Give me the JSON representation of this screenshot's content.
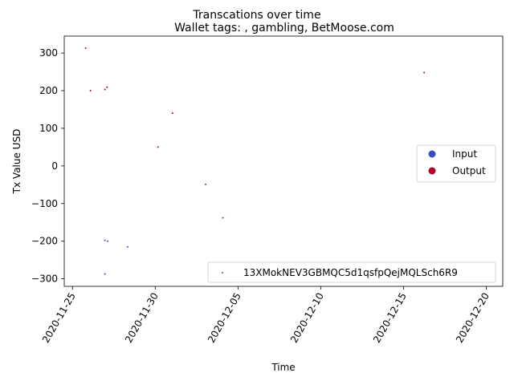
{
  "chart_data": {
    "type": "scatter",
    "title": "Transcations over time",
    "subtitle": "Wallet tags: , gambling, BetMoose.com",
    "xlabel": "Time",
    "ylabel": "Tx Value USD",
    "x_ticks": [
      "2020-11-25",
      "2020-11-30",
      "2020-12-05",
      "2020-12-10",
      "2020-12-15",
      "2020-12-20"
    ],
    "y_ticks": [
      300,
      200,
      100,
      0,
      -100,
      -200,
      -300
    ],
    "xlim": [
      "2020-11-24T12:00",
      "2020-12-21T00:00"
    ],
    "ylim": [
      -320,
      345
    ],
    "grid": false,
    "legend_type": {
      "location": "center-right",
      "entries": [
        {
          "label": "Input",
          "color": "#3b4cc0"
        },
        {
          "label": "Output",
          "color": "#b40426"
        }
      ]
    },
    "legend_address": {
      "location": "lower-right",
      "label": "13XMokNEV3GBMQC5d1qsfpQejMQLSch6R9",
      "color": "#3b4cc0"
    },
    "series": [
      {
        "name": "Output",
        "color": "#b40426",
        "points": [
          {
            "x": "2020-11-25T19:00",
            "y": 313
          },
          {
            "x": "2020-11-26T02:00",
            "y": 200
          },
          {
            "x": "2020-11-26T23:00",
            "y": 203
          },
          {
            "x": "2020-11-27T02:00",
            "y": 209
          },
          {
            "x": "2020-11-30T04:00",
            "y": 50
          },
          {
            "x": "2020-12-01T01:00",
            "y": 140
          },
          {
            "x": "2020-12-16T06:00",
            "y": 248
          }
        ]
      },
      {
        "name": "Input",
        "color": "#3b4cc0",
        "points": [
          {
            "x": "2020-11-26T23:00",
            "y": -198
          },
          {
            "x": "2020-11-27T03:00",
            "y": -200
          },
          {
            "x": "2020-11-26T23:00",
            "y": -287
          },
          {
            "x": "2020-11-28T08:00",
            "y": -215
          },
          {
            "x": "2020-12-03T01:00",
            "y": -49
          },
          {
            "x": "2020-12-04T02:00",
            "y": -138
          }
        ]
      }
    ]
  }
}
